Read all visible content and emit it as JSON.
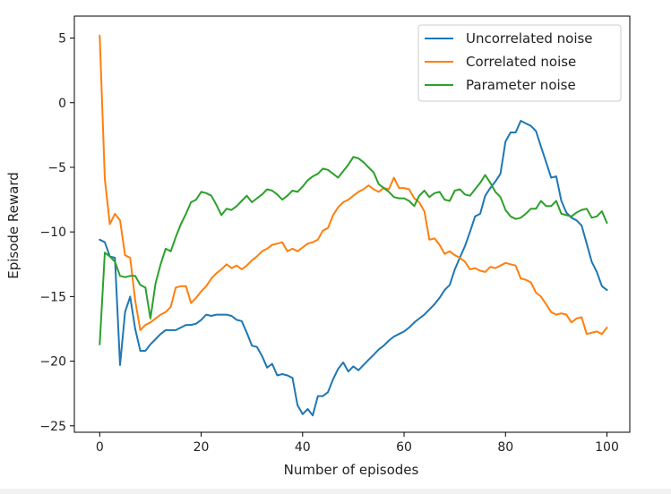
{
  "chart_data": {
    "type": "line",
    "title": "",
    "xlabel": "Number of episodes",
    "ylabel": "Episode Reward",
    "xlim": [
      -5,
      104.5
    ],
    "ylim": [
      -25.5,
      6.7
    ],
    "xticks": [
      0,
      20,
      40,
      60,
      80,
      100
    ],
    "yticks": [
      5,
      0,
      -5,
      -10,
      -15,
      -20,
      -25
    ],
    "xtick_labels": [
      "0",
      "20",
      "40",
      "60",
      "80",
      "100"
    ],
    "ytick_labels": [
      "5",
      "0",
      "−5",
      "−10",
      "−15",
      "−20",
      "−25"
    ],
    "grid": false,
    "legend_position": "upper-right",
    "x": [
      0,
      1,
      2,
      3,
      4,
      5,
      6,
      7,
      8,
      9,
      10,
      11,
      12,
      13,
      14,
      15,
      16,
      17,
      18,
      19,
      20,
      21,
      22,
      23,
      24,
      25,
      26,
      27,
      28,
      29,
      30,
      31,
      32,
      33,
      34,
      35,
      36,
      37,
      38,
      39,
      40,
      41,
      42,
      43,
      44,
      45,
      46,
      47,
      48,
      49,
      50,
      51,
      52,
      53,
      54,
      55,
      56,
      57,
      58,
      59,
      60,
      61,
      62,
      63,
      64,
      65,
      66,
      67,
      68,
      69,
      70,
      71,
      72,
      73,
      74,
      75,
      76,
      77,
      78,
      79,
      80,
      81,
      82,
      83,
      84,
      85,
      86,
      87,
      88,
      89,
      90,
      91,
      92,
      93,
      94,
      95,
      96,
      97,
      98,
      99,
      100
    ],
    "series": [
      {
        "name": "Uncorrelated noise",
        "color": "#1f77b4",
        "values": [
          -10.6,
          -10.8,
          -11.9,
          -12.0,
          -20.3,
          -16.2,
          -15.0,
          -17.5,
          -19.2,
          -19.2,
          -18.7,
          -18.3,
          -17.9,
          -17.6,
          -17.6,
          -17.6,
          -17.4,
          -17.2,
          -17.2,
          -17.1,
          -16.8,
          -16.4,
          -16.5,
          -16.4,
          -16.4,
          -16.4,
          -16.5,
          -16.8,
          -16.9,
          -17.8,
          -18.8,
          -18.9,
          -19.6,
          -20.5,
          -20.2,
          -21.1,
          -21.0,
          -21.1,
          -21.3,
          -23.4,
          -24.1,
          -23.7,
          -24.2,
          -22.7,
          -22.7,
          -22.4,
          -21.4,
          -20.6,
          -20.1,
          -20.8,
          -20.4,
          -20.7,
          -20.3,
          -19.9,
          -19.5,
          -19.1,
          -18.8,
          -18.4,
          -18.1,
          -17.9,
          -17.7,
          -17.4,
          -17.0,
          -16.7,
          -16.4,
          -16.0,
          -15.6,
          -15.1,
          -14.5,
          -14.1,
          -12.9,
          -12.0,
          -11.1,
          -10.0,
          -8.8,
          -8.6,
          -7.2,
          -6.6,
          -6.1,
          -5.5,
          -3.0,
          -2.3,
          -2.3,
          -1.4,
          -1.6,
          -1.8,
          -2.2,
          -3.4,
          -4.6,
          -5.8,
          -5.7,
          -7.6,
          -8.5,
          -8.9,
          -9.1,
          -9.5,
          -10.9,
          -12.3,
          -13.1,
          -14.2,
          -14.5
        ]
      },
      {
        "name": "Correlated noise",
        "color": "#ff7f0e",
        "values": [
          5.2,
          -5.9,
          -9.4,
          -8.6,
          -9.1,
          -11.8,
          -12.0,
          -15.3,
          -17.6,
          -17.2,
          -17.0,
          -16.7,
          -16.4,
          -16.2,
          -15.8,
          -14.3,
          -14.2,
          -14.2,
          -15.5,
          -15.1,
          -14.6,
          -14.2,
          -13.6,
          -13.2,
          -12.9,
          -12.5,
          -12.8,
          -12.6,
          -12.9,
          -12.6,
          -12.2,
          -11.9,
          -11.5,
          -11.3,
          -11.0,
          -10.9,
          -10.8,
          -11.5,
          -11.3,
          -11.5,
          -11.2,
          -10.9,
          -10.8,
          -10.6,
          -9.9,
          -9.7,
          -8.7,
          -8.1,
          -7.7,
          -7.5,
          -7.2,
          -6.9,
          -6.7,
          -6.4,
          -6.7,
          -6.9,
          -6.6,
          -6.7,
          -5.8,
          -6.6,
          -6.6,
          -6.7,
          -7.4,
          -7.7,
          -8.4,
          -10.6,
          -10.5,
          -11.0,
          -11.7,
          -11.5,
          -11.8,
          -12.0,
          -12.3,
          -12.9,
          -12.8,
          -13.0,
          -13.1,
          -12.7,
          -12.8,
          -12.6,
          -12.4,
          -12.5,
          -12.6,
          -13.6,
          -13.7,
          -13.9,
          -14.7,
          -15.0,
          -15.6,
          -16.2,
          -16.4,
          -16.3,
          -16.4,
          -17.0,
          -16.7,
          -16.6,
          -17.9,
          -17.8,
          -17.7,
          -17.9,
          -17.4
        ]
      },
      {
        "name": "Parameter noise",
        "color": "#2ca02c",
        "values": [
          -18.7,
          -11.6,
          -11.9,
          -12.3,
          -13.4,
          -13.5,
          -13.4,
          -13.4,
          -14.1,
          -14.3,
          -16.7,
          -14.0,
          -12.5,
          -11.3,
          -11.5,
          -10.4,
          -9.4,
          -8.6,
          -7.7,
          -7.5,
          -6.9,
          -7.0,
          -7.2,
          -7.9,
          -8.7,
          -8.2,
          -8.3,
          -8.0,
          -7.6,
          -7.2,
          -7.7,
          -7.4,
          -7.1,
          -6.7,
          -6.8,
          -7.1,
          -7.5,
          -7.2,
          -6.8,
          -6.9,
          -6.5,
          -6.0,
          -5.7,
          -5.5,
          -5.1,
          -5.2,
          -5.5,
          -5.8,
          -5.3,
          -4.8,
          -4.2,
          -4.3,
          -4.6,
          -5.0,
          -5.4,
          -6.3,
          -6.6,
          -6.9,
          -7.3,
          -7.4,
          -7.4,
          -7.6,
          -8.0,
          -7.2,
          -6.8,
          -7.3,
          -7.0,
          -6.9,
          -7.5,
          -7.6,
          -6.8,
          -6.7,
          -7.1,
          -7.2,
          -6.7,
          -6.2,
          -5.6,
          -6.2,
          -6.9,
          -7.3,
          -8.3,
          -8.8,
          -9.0,
          -8.9,
          -8.6,
          -8.2,
          -8.2,
          -7.6,
          -8.0,
          -8.0,
          -7.6,
          -8.6,
          -8.7,
          -8.8,
          -8.5,
          -8.3,
          -8.2,
          -8.9,
          -8.8,
          -8.4,
          -9.3
        ]
      }
    ]
  }
}
